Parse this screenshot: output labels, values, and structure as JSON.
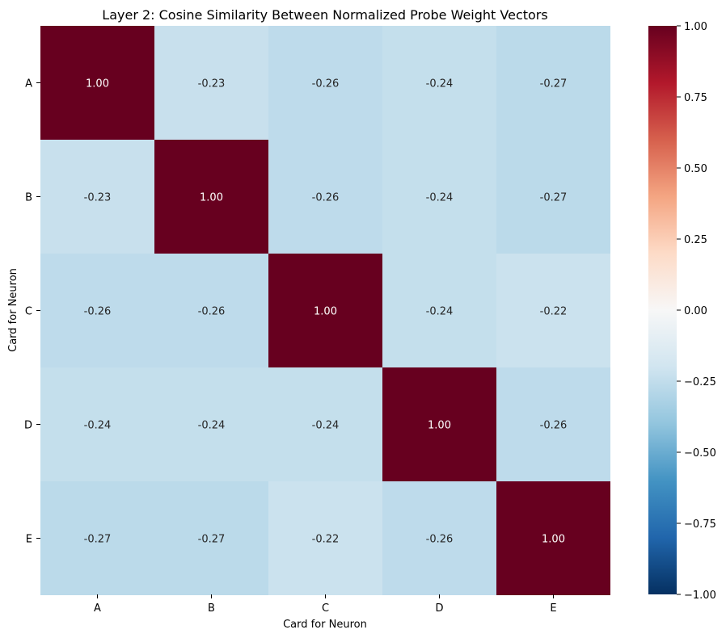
{
  "chart_data": {
    "type": "heatmap",
    "title": "Layer 2: Cosine Similarity Between Normalized Probe Weight Vectors",
    "xlabel": "Card for Neuron",
    "ylabel": "Card for Neuron",
    "x_categories": [
      "A",
      "B",
      "C",
      "D",
      "E"
    ],
    "y_categories": [
      "A",
      "B",
      "C",
      "D",
      "E"
    ],
    "values": [
      [
        1.0,
        -0.23,
        -0.26,
        -0.24,
        -0.27
      ],
      [
        -0.23,
        1.0,
        -0.26,
        -0.24,
        -0.27
      ],
      [
        -0.26,
        -0.26,
        1.0,
        -0.24,
        -0.22
      ],
      [
        -0.24,
        -0.24,
        -0.24,
        1.0,
        -0.26
      ],
      [
        -0.27,
        -0.27,
        -0.22,
        -0.26,
        1.0
      ]
    ],
    "cell_labels": [
      [
        "1.00",
        "-0.23",
        "-0.26",
        "-0.24",
        "-0.27"
      ],
      [
        "-0.23",
        "1.00",
        "-0.26",
        "-0.24",
        "-0.27"
      ],
      [
        "-0.26",
        "-0.26",
        "1.00",
        "-0.24",
        "-0.22"
      ],
      [
        "-0.24",
        "-0.24",
        "-0.24",
        "1.00",
        "-0.26"
      ],
      [
        "-0.27",
        "-0.27",
        "-0.22",
        "-0.26",
        "1.00"
      ]
    ],
    "colormap": "RdBu_r",
    "vmin": -1.0,
    "vmax": 1.0,
    "colorbar_ticks": [
      "1.00",
      "0.75",
      "0.50",
      "0.25",
      "0.00",
      "−0.25",
      "−0.50",
      "−0.75",
      "−1.00"
    ],
    "colorbar_tick_values": [
      1.0,
      0.75,
      0.5,
      0.25,
      0.0,
      -0.25,
      -0.5,
      -0.75,
      -1.0
    ],
    "grid": false,
    "legend": "colorbar-right"
  }
}
